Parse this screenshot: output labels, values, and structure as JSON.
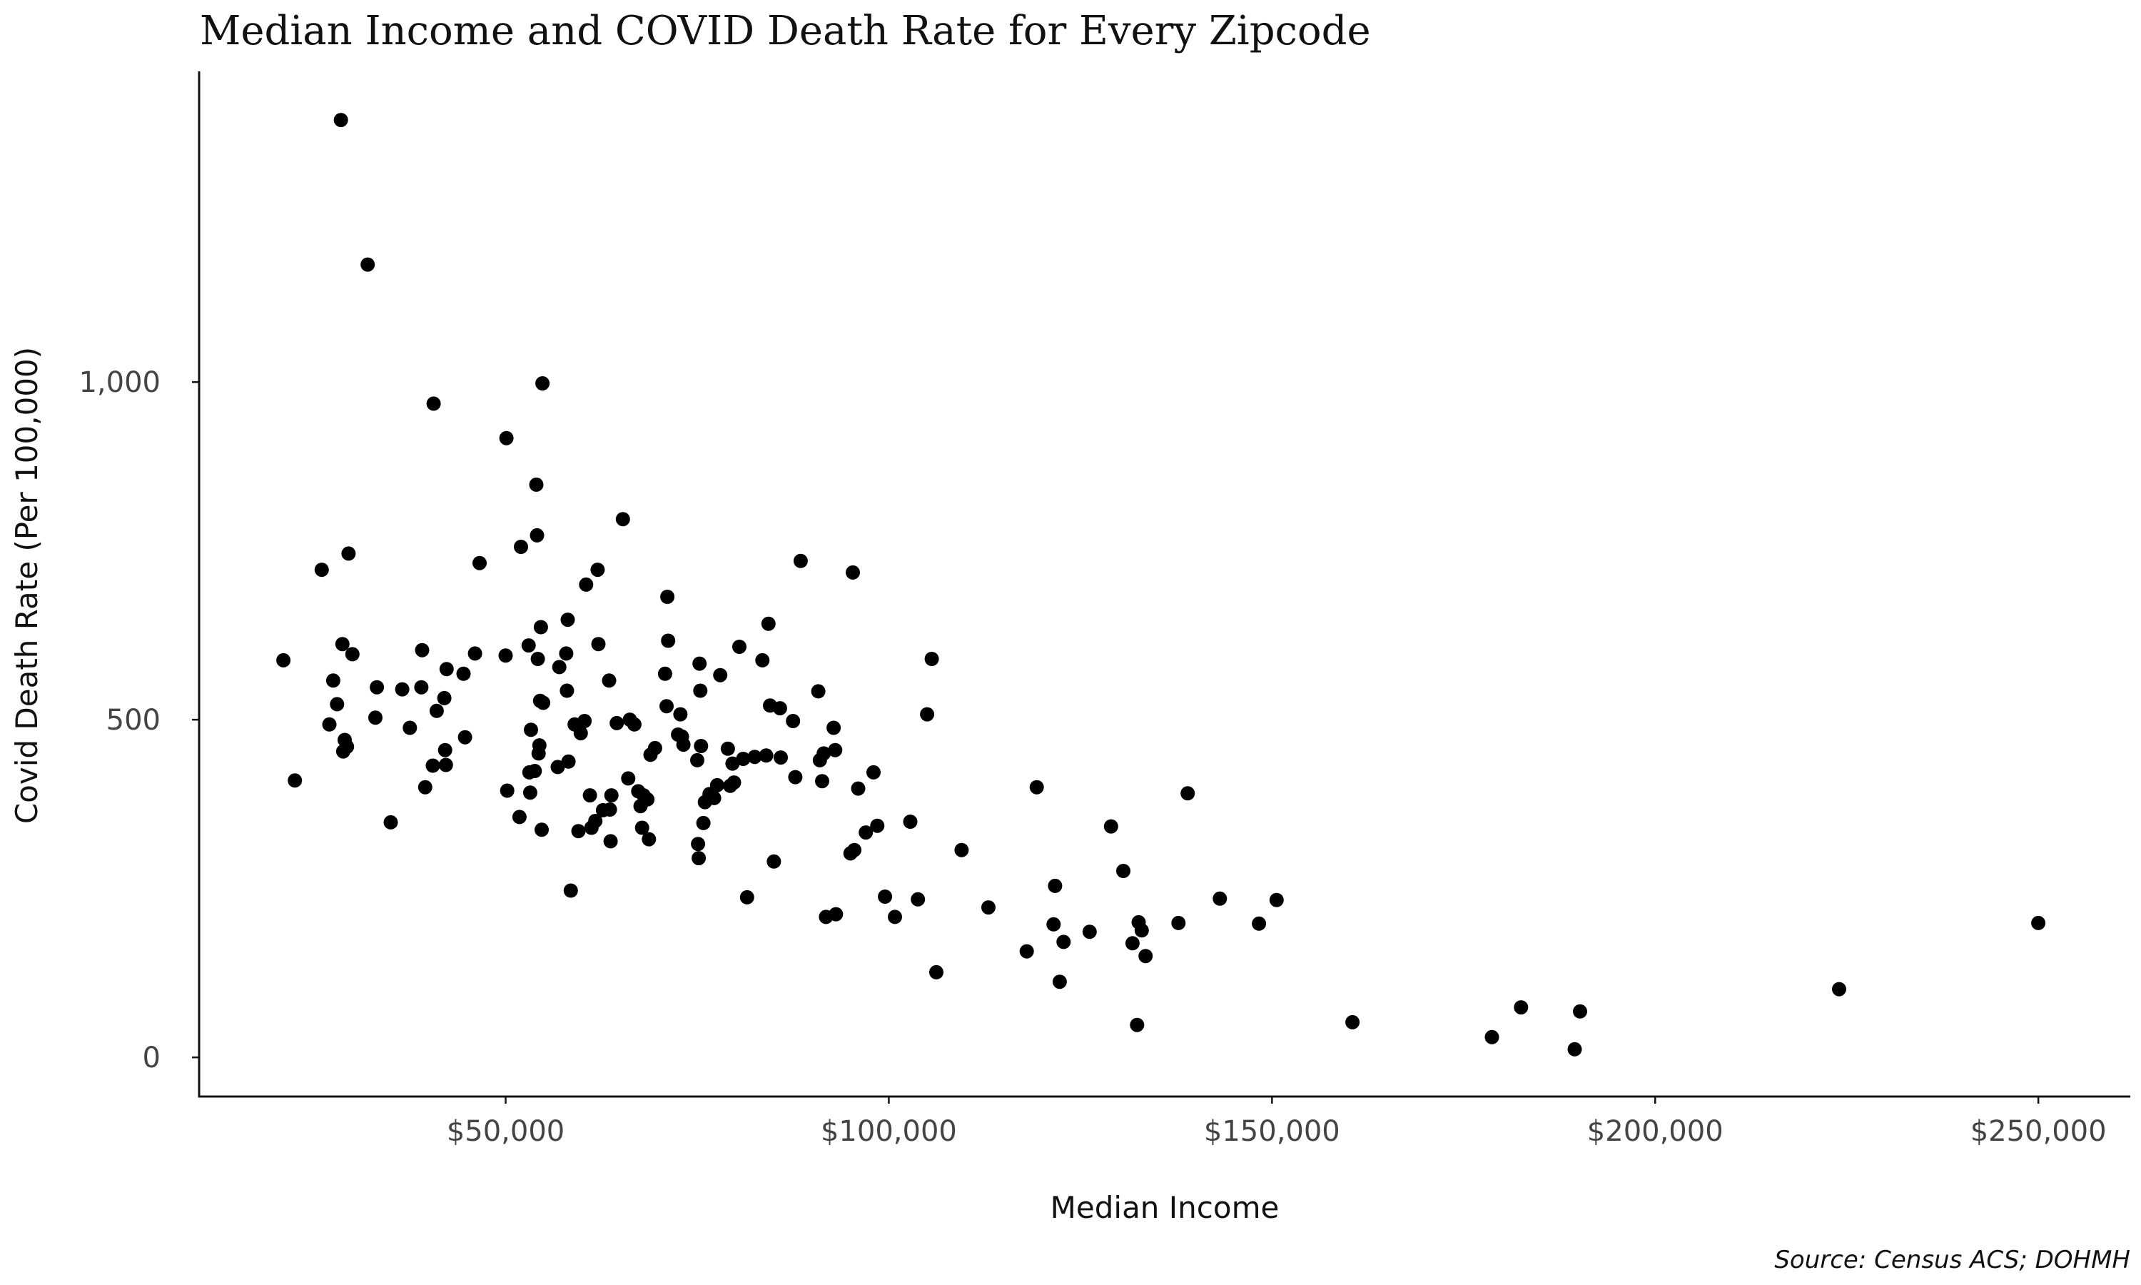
{
  "chart_data": {
    "type": "scatter",
    "title": "Median Income and COVID Death Rate for Every Zipcode",
    "xlabel": "Median Income",
    "ylabel": "Covid Death Rate (Per 100,000)",
    "caption": "Source: Census ACS; DOHMH",
    "xlim": [
      10000,
      262000
    ],
    "ylim": [
      -58,
      1460
    ],
    "x_ticks": [
      {
        "value": 50000,
        "label": "$50,000"
      },
      {
        "value": 100000,
        "label": "$100,000"
      },
      {
        "value": 150000,
        "label": "$150,000"
      },
      {
        "value": 200000,
        "label": "$200,000"
      },
      {
        "value": 250000,
        "label": "$250,000"
      }
    ],
    "y_ticks": [
      {
        "value": 0,
        "label": "0"
      },
      {
        "value": 500,
        "label": "500"
      },
      {
        "value": 1000,
        "label": "1,000"
      }
    ],
    "grid": false,
    "colors": {
      "point": "#000000",
      "axis": "#111111",
      "tick_label": "#444444"
    },
    "points": [
      [
        21000,
        588
      ],
      [
        22500,
        410
      ],
      [
        26000,
        722
      ],
      [
        27000,
        493
      ],
      [
        27500,
        558
      ],
      [
        28000,
        523
      ],
      [
        28500,
        1388
      ],
      [
        28700,
        612
      ],
      [
        28800,
        453
      ],
      [
        29000,
        470
      ],
      [
        29300,
        460
      ],
      [
        29500,
        746
      ],
      [
        30000,
        597
      ],
      [
        32000,
        1174
      ],
      [
        33000,
        503
      ],
      [
        33200,
        548
      ],
      [
        35000,
        348
      ],
      [
        36500,
        545
      ],
      [
        37500,
        488
      ],
      [
        39000,
        548
      ],
      [
        39100,
        603
      ],
      [
        39500,
        400
      ],
      [
        40500,
        432
      ],
      [
        40600,
        968
      ],
      [
        41000,
        513
      ],
      [
        42000,
        532
      ],
      [
        42100,
        455
      ],
      [
        42200,
        433
      ],
      [
        42300,
        575
      ],
      [
        44500,
        568
      ],
      [
        44700,
        474
      ],
      [
        46000,
        598
      ],
      [
        46600,
        732
      ],
      [
        50000,
        595
      ],
      [
        50100,
        917
      ],
      [
        50200,
        395
      ],
      [
        51800,
        356
      ],
      [
        52000,
        756
      ],
      [
        53000,
        610
      ],
      [
        53100,
        422
      ],
      [
        53200,
        392
      ],
      [
        53300,
        485
      ],
      [
        53800,
        424
      ],
      [
        54000,
        848
      ],
      [
        54100,
        773
      ],
      [
        54200,
        590
      ],
      [
        54300,
        450
      ],
      [
        54400,
        462
      ],
      [
        54500,
        528
      ],
      [
        54600,
        637
      ],
      [
        54700,
        337
      ],
      [
        54800,
        998
      ],
      [
        54900,
        525
      ],
      [
        56800,
        430
      ],
      [
        57000,
        578
      ],
      [
        57900,
        598
      ],
      [
        58000,
        543
      ],
      [
        58100,
        648
      ],
      [
        58200,
        438
      ],
      [
        58500,
        247
      ],
      [
        59000,
        493
      ],
      [
        59500,
        335
      ],
      [
        59800,
        480
      ],
      [
        60300,
        498
      ],
      [
        60500,
        700
      ],
      [
        61000,
        388
      ],
      [
        61200,
        340
      ],
      [
        61700,
        350
      ],
      [
        62000,
        722
      ],
      [
        62100,
        612
      ],
      [
        62700,
        366
      ],
      [
        63500,
        558
      ],
      [
        63600,
        367
      ],
      [
        63700,
        320
      ],
      [
        63800,
        388
      ],
      [
        64500,
        495
      ],
      [
        65300,
        797
      ],
      [
        66000,
        413
      ],
      [
        66200,
        500
      ],
      [
        66800,
        493
      ],
      [
        67300,
        394
      ],
      [
        67600,
        372
      ],
      [
        67800,
        340
      ],
      [
        68000,
        388
      ],
      [
        68500,
        382
      ],
      [
        68700,
        323
      ],
      [
        68900,
        448
      ],
      [
        69500,
        458
      ],
      [
        70800,
        568
      ],
      [
        71000,
        520
      ],
      [
        71100,
        682
      ],
      [
        71200,
        617
      ],
      [
        72500,
        478
      ],
      [
        72800,
        508
      ],
      [
        73000,
        475
      ],
      [
        73200,
        463
      ],
      [
        75000,
        440
      ],
      [
        75100,
        316
      ],
      [
        75200,
        295
      ],
      [
        75300,
        583
      ],
      [
        75400,
        543
      ],
      [
        75500,
        461
      ],
      [
        75800,
        347
      ],
      [
        76000,
        378
      ],
      [
        76600,
        390
      ],
      [
        77200,
        384
      ],
      [
        77600,
        403
      ],
      [
        78000,
        566
      ],
      [
        79000,
        457
      ],
      [
        79300,
        402
      ],
      [
        79600,
        435
      ],
      [
        79800,
        407
      ],
      [
        80500,
        608
      ],
      [
        81000,
        442
      ],
      [
        81500,
        237
      ],
      [
        82500,
        445
      ],
      [
        83500,
        588
      ],
      [
        84000,
        447
      ],
      [
        84300,
        642
      ],
      [
        84500,
        521
      ],
      [
        85000,
        290
      ],
      [
        85800,
        517
      ],
      [
        85900,
        444
      ],
      [
        87500,
        498
      ],
      [
        87800,
        415
      ],
      [
        88500,
        735
      ],
      [
        90800,
        542
      ],
      [
        91000,
        440
      ],
      [
        91300,
        409
      ],
      [
        91500,
        450
      ],
      [
        91800,
        208
      ],
      [
        92800,
        488
      ],
      [
        93000,
        455
      ],
      [
        93100,
        212
      ],
      [
        95000,
        302
      ],
      [
        95300,
        718
      ],
      [
        95500,
        307
      ],
      [
        96000,
        398
      ],
      [
        97000,
        333
      ],
      [
        98000,
        422
      ],
      [
        98500,
        343
      ],
      [
        99500,
        238
      ],
      [
        100800,
        208
      ],
      [
        102800,
        349
      ],
      [
        103800,
        234
      ],
      [
        105000,
        508
      ],
      [
        105600,
        590
      ],
      [
        106200,
        126
      ],
      [
        109500,
        307
      ],
      [
        113000,
        222
      ],
      [
        118000,
        157
      ],
      [
        119300,
        400
      ],
      [
        121500,
        197
      ],
      [
        121700,
        254
      ],
      [
        122300,
        112
      ],
      [
        122800,
        171
      ],
      [
        126200,
        186
      ],
      [
        129000,
        342
      ],
      [
        130600,
        276
      ],
      [
        131800,
        169
      ],
      [
        132400,
        48
      ],
      [
        132600,
        200
      ],
      [
        133000,
        188
      ],
      [
        133500,
        150
      ],
      [
        137800,
        199
      ],
      [
        139000,
        391
      ],
      [
        143200,
        235
      ],
      [
        148300,
        198
      ],
      [
        150600,
        233
      ],
      [
        160500,
        52
      ],
      [
        178700,
        30
      ],
      [
        182500,
        74
      ],
      [
        189500,
        12
      ],
      [
        190200,
        68
      ],
      [
        224000,
        101
      ],
      [
        250000,
        199
      ]
    ]
  }
}
